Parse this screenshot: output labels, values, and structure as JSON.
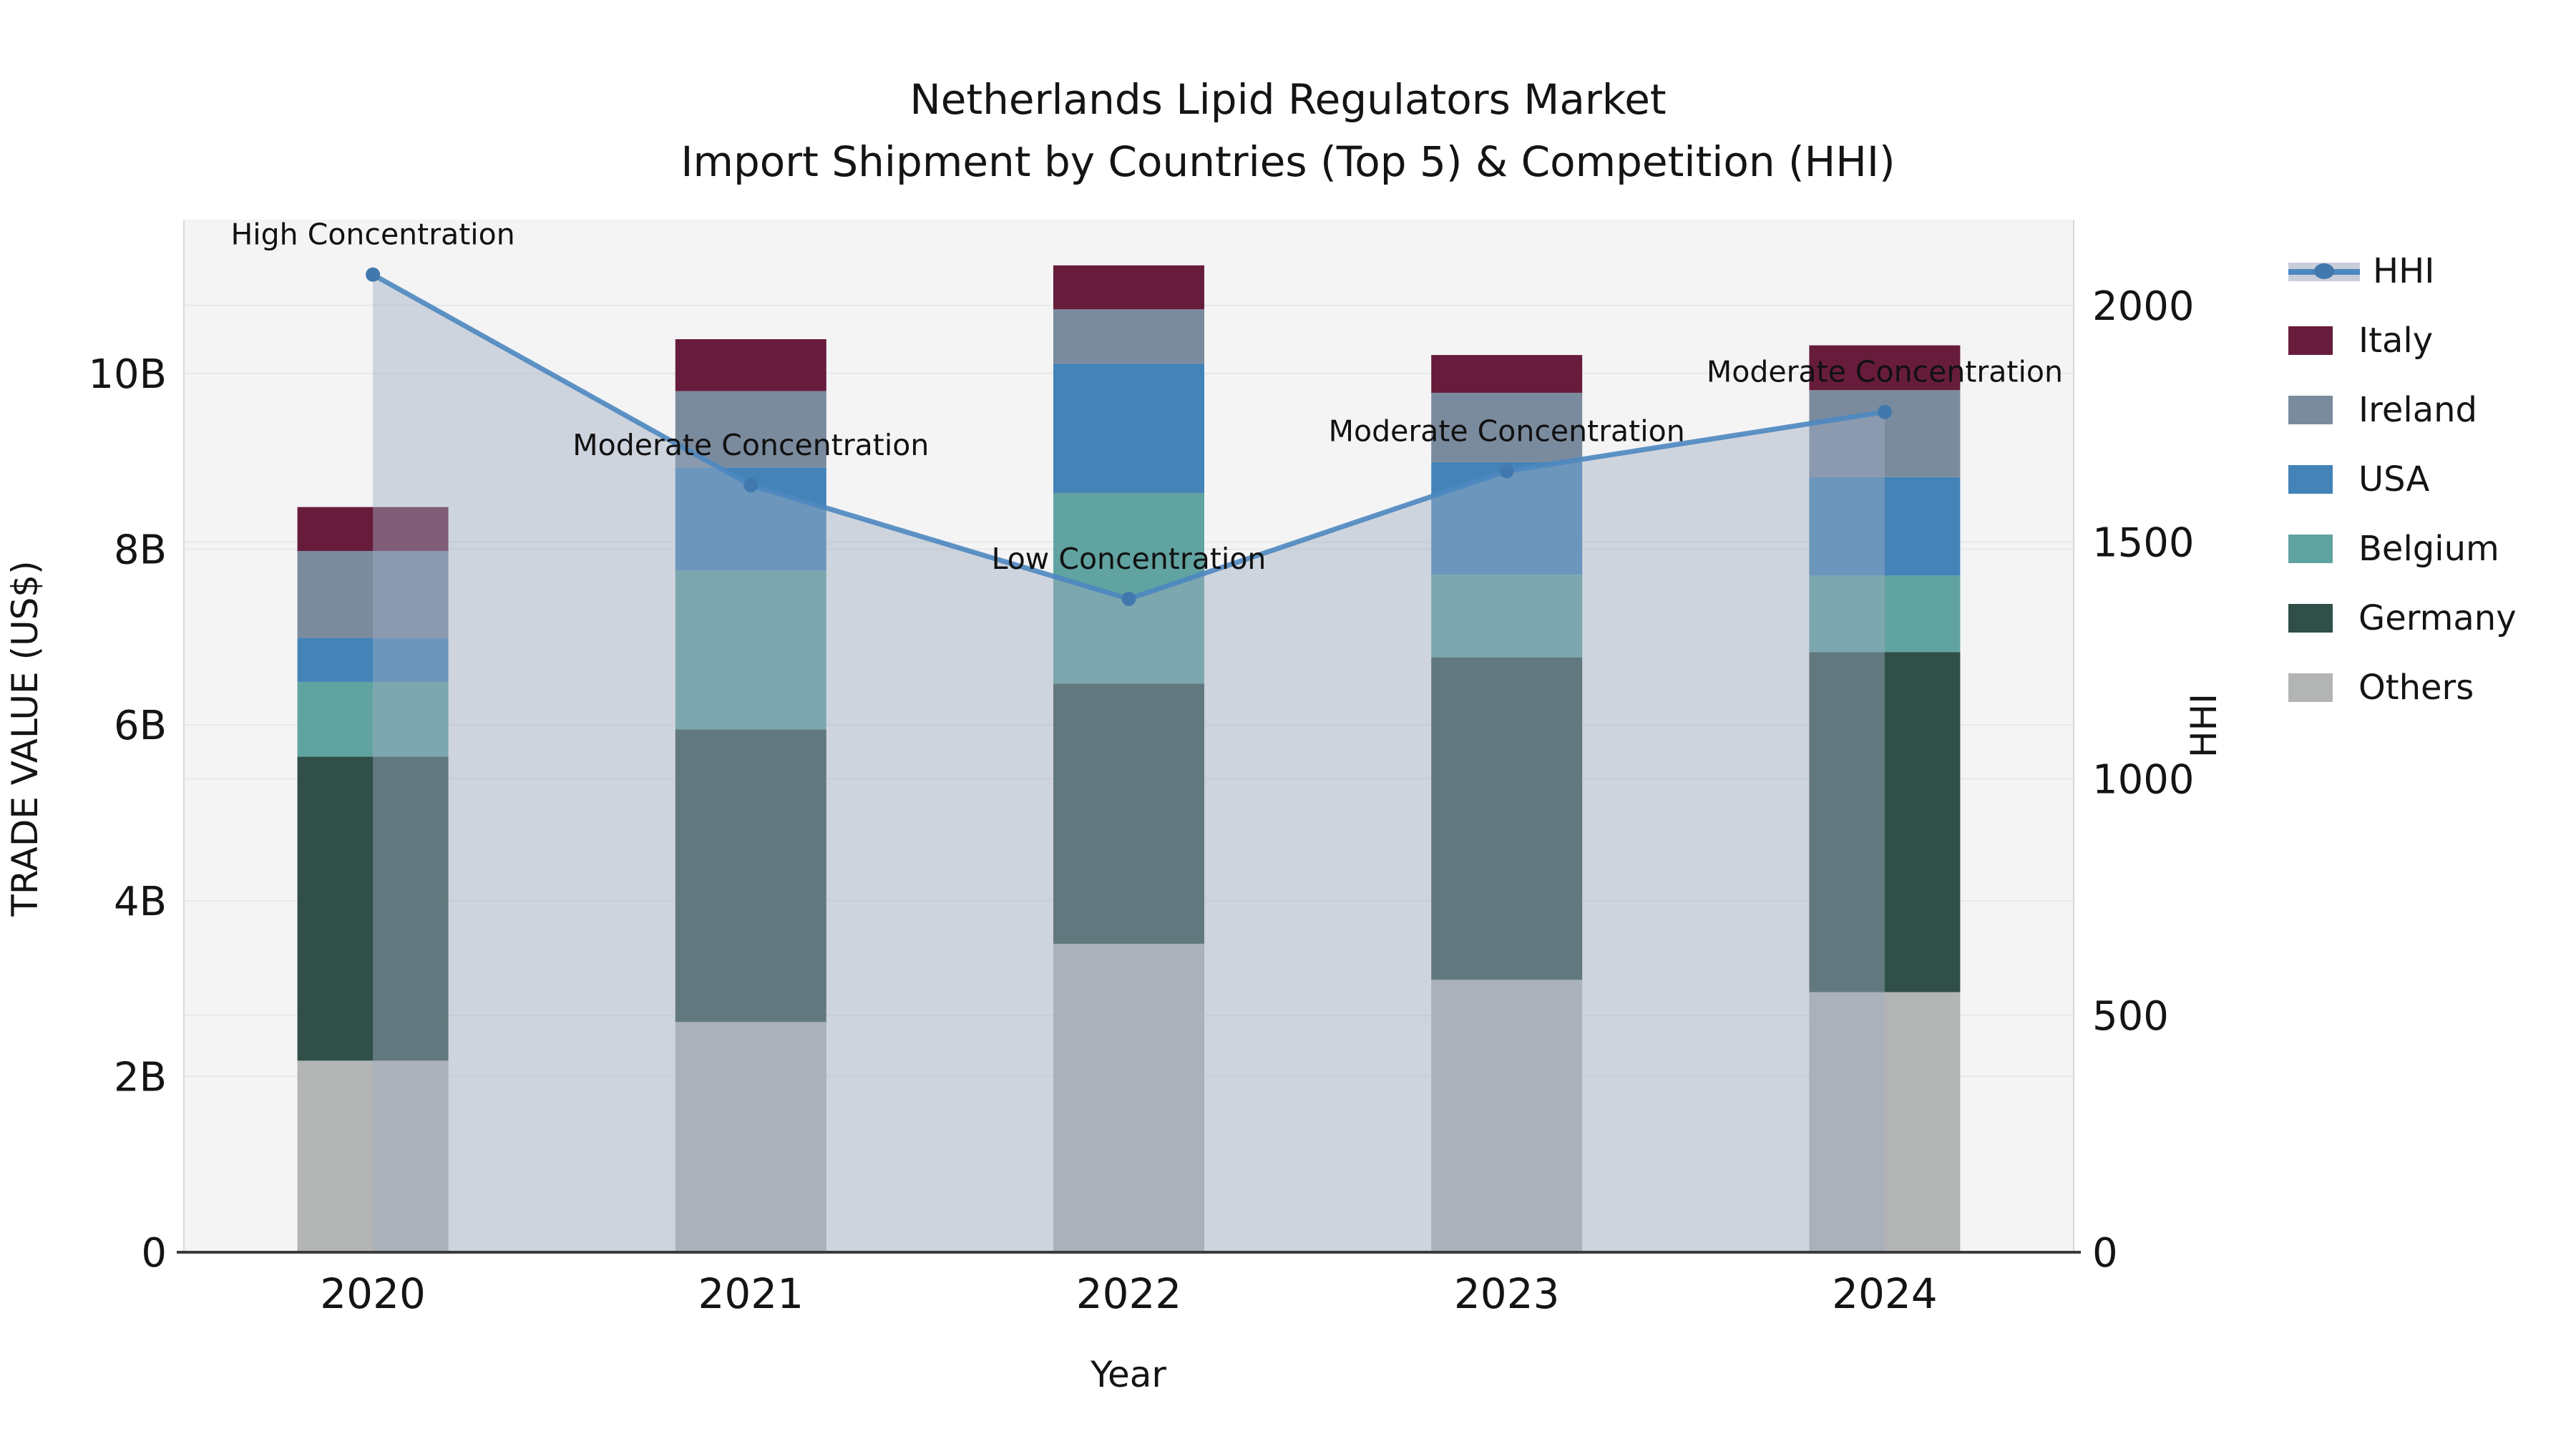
{
  "title": {
    "line1": "Netherlands Lipid Regulators Market",
    "line2": "Import Shipment by Countries (Top 5) & Competition (HHI)"
  },
  "chart_data": {
    "type": "combo_stacked_bar_line",
    "categories": [
      "2020",
      "2021",
      "2022",
      "2023",
      "2024"
    ],
    "xlabel": "Year",
    "ylabel_left": "TRADE VALUE (US$)",
    "ylabel_right": "HHI",
    "unit_left": "billions of US$",
    "ylim_left": [
      0,
      11.75
    ],
    "ylim_right": [
      0,
      2181
    ],
    "yticks_left": [
      {
        "value": 0,
        "label": "0"
      },
      {
        "value": 2,
        "label": "2B"
      },
      {
        "value": 4,
        "label": "4B"
      },
      {
        "value": 6,
        "label": "6B"
      },
      {
        "value": 8,
        "label": "8B"
      },
      {
        "value": 10,
        "label": "10B"
      }
    ],
    "yticks_right": [
      {
        "value": 0,
        "label": "0"
      },
      {
        "value": 500,
        "label": "500"
      },
      {
        "value": 1000,
        "label": "1000"
      },
      {
        "value": 1500,
        "label": "1500"
      },
      {
        "value": 2000,
        "label": "2000"
      }
    ],
    "series": [
      {
        "name": "Others",
        "color": "#b3b5b4",
        "values": [
          2.18,
          2.62,
          3.51,
          3.1,
          2.96
        ]
      },
      {
        "name": "Germany",
        "color": "#2f4f48",
        "values": [
          3.46,
          3.33,
          2.96,
          3.67,
          3.87
        ]
      },
      {
        "name": "Belgium",
        "color": "#61a3a0",
        "values": [
          0.85,
          1.81,
          2.17,
          0.94,
          0.87
        ]
      },
      {
        "name": "USA",
        "color": "#4383b8",
        "values": [
          0.5,
          1.17,
          1.47,
          1.28,
          1.12
        ]
      },
      {
        "name": "Ireland",
        "color": "#7b8b9e",
        "values": [
          0.99,
          0.87,
          0.62,
          0.79,
          0.99
        ]
      },
      {
        "name": "Italy",
        "color": "#671c3b",
        "values": [
          0.5,
          0.59,
          0.5,
          0.43,
          0.51
        ]
      }
    ],
    "bar_totals": [
      8.48,
      10.39,
      11.23,
      10.21,
      10.32
    ],
    "line_series": {
      "name": "HHI",
      "values": [
        2065,
        1620,
        1380,
        1650,
        1775
      ],
      "color": "#4c87c0",
      "marker_color": "#4179ae",
      "area_fill": "#a0acc0",
      "area_opacity": 0.45
    },
    "annotations": [
      {
        "category": "2020",
        "text": "High Concentration"
      },
      {
        "category": "2021",
        "text": "Moderate Concentration"
      },
      {
        "category": "2022",
        "text": "Low Concentration"
      },
      {
        "category": "2023",
        "text": "Moderate Concentration"
      },
      {
        "category": "2024",
        "text": "Moderate Concentration"
      }
    ],
    "legend_order": [
      "HHI",
      "Italy",
      "Ireland",
      "USA",
      "Belgium",
      "Germany",
      "Others"
    ],
    "legend_position": "right-top-outside",
    "grid": true,
    "colors": {
      "plot_background": "#f4f4f5",
      "figure_background": "#ffffff",
      "gridline": "#e7e8ea",
      "bottom_spine": "#3c3c3c",
      "side_spine": "#d9d9d9",
      "text": "#141414"
    }
  }
}
